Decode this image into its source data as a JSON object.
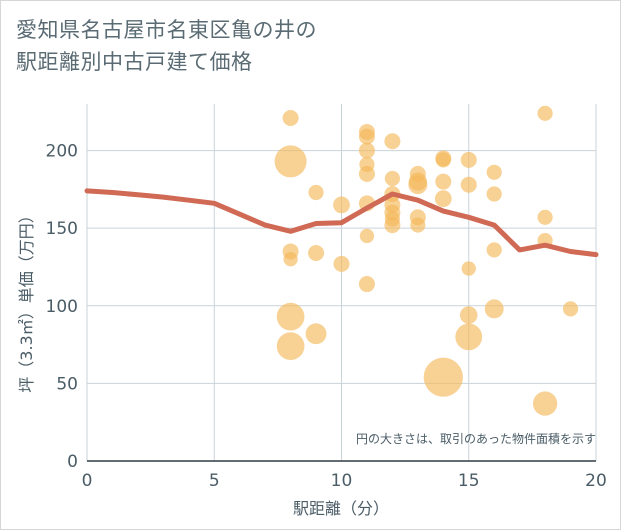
{
  "chart_data": {
    "type": "scatter",
    "title_line1": "愛知県名古屋市名東区亀の井の",
    "title_line2": "駅距離別中古戸建て価格",
    "xlabel": "駅距離（分）",
    "ylabel": "坪（3.3㎡）単価（万円）",
    "xlim": [
      0,
      20
    ],
    "ylim": [
      0,
      230
    ],
    "xticks": [
      0,
      5,
      10,
      15,
      20
    ],
    "yticks": [
      0,
      50,
      100,
      150,
      200
    ],
    "grid": true,
    "note": "円の大きさは、取引のあった物件面積を示す",
    "colors": {
      "bubble": "#f5b95a",
      "line": "#d06a55",
      "grid": "#c9d3da",
      "text": "#4a5c66"
    },
    "points": [
      {
        "x": 8,
        "y": 221,
        "size": 1
      },
      {
        "x": 8,
        "y": 193,
        "size": 4
      },
      {
        "x": 8,
        "y": 135,
        "size": 1
      },
      {
        "x": 8,
        "y": 130,
        "size": 0.8
      },
      {
        "x": 8,
        "y": 93,
        "size": 3
      },
      {
        "x": 8,
        "y": 74,
        "size": 3
      },
      {
        "x": 9,
        "y": 173,
        "size": 0.9
      },
      {
        "x": 9,
        "y": 134,
        "size": 1
      },
      {
        "x": 9,
        "y": 82,
        "size": 1.7
      },
      {
        "x": 10,
        "y": 165,
        "size": 1.1
      },
      {
        "x": 10,
        "y": 127,
        "size": 1
      },
      {
        "x": 11,
        "y": 212,
        "size": 1
      },
      {
        "x": 11,
        "y": 209,
        "size": 1
      },
      {
        "x": 11,
        "y": 200,
        "size": 1
      },
      {
        "x": 11,
        "y": 191,
        "size": 0.9
      },
      {
        "x": 11,
        "y": 185,
        "size": 1
      },
      {
        "x": 11,
        "y": 166,
        "size": 1
      },
      {
        "x": 11,
        "y": 145,
        "size": 0.8
      },
      {
        "x": 11,
        "y": 114,
        "size": 1
      },
      {
        "x": 12,
        "y": 206,
        "size": 1
      },
      {
        "x": 12,
        "y": 182,
        "size": 0.9
      },
      {
        "x": 12,
        "y": 172,
        "size": 1
      },
      {
        "x": 12,
        "y": 165,
        "size": 1
      },
      {
        "x": 12,
        "y": 160,
        "size": 1
      },
      {
        "x": 12,
        "y": 156,
        "size": 0.9
      },
      {
        "x": 12,
        "y": 152,
        "size": 1
      },
      {
        "x": 13,
        "y": 185,
        "size": 1
      },
      {
        "x": 13,
        "y": 180,
        "size": 1.3
      },
      {
        "x": 13,
        "y": 178,
        "size": 1.4
      },
      {
        "x": 13,
        "y": 157,
        "size": 1
      },
      {
        "x": 13,
        "y": 152,
        "size": 0.9
      },
      {
        "x": 14,
        "y": 195,
        "size": 1
      },
      {
        "x": 14,
        "y": 194,
        "size": 0.9
      },
      {
        "x": 14,
        "y": 180,
        "size": 1
      },
      {
        "x": 14,
        "y": 169,
        "size": 1.1
      },
      {
        "x": 14,
        "y": 54,
        "size": 6
      },
      {
        "x": 15,
        "y": 194,
        "size": 1
      },
      {
        "x": 15,
        "y": 178,
        "size": 1
      },
      {
        "x": 15,
        "y": 124,
        "size": 0.8
      },
      {
        "x": 15,
        "y": 94,
        "size": 1.2
      },
      {
        "x": 15,
        "y": 80,
        "size": 2.8
      },
      {
        "x": 16,
        "y": 186,
        "size": 0.9
      },
      {
        "x": 16,
        "y": 172,
        "size": 0.9
      },
      {
        "x": 16,
        "y": 136,
        "size": 0.9
      },
      {
        "x": 16,
        "y": 98,
        "size": 1.4
      },
      {
        "x": 18,
        "y": 224,
        "size": 0.9
      },
      {
        "x": 18,
        "y": 157,
        "size": 0.9
      },
      {
        "x": 18,
        "y": 142,
        "size": 0.9
      },
      {
        "x": 18,
        "y": 37,
        "size": 2.3
      },
      {
        "x": 19,
        "y": 98,
        "size": 0.9
      }
    ],
    "trend": [
      {
        "x": 0,
        "y": 174
      },
      {
        "x": 1,
        "y": 173
      },
      {
        "x": 2,
        "y": 171.5
      },
      {
        "x": 3,
        "y": 170
      },
      {
        "x": 4,
        "y": 168
      },
      {
        "x": 5,
        "y": 166
      },
      {
        "x": 6,
        "y": 159
      },
      {
        "x": 7,
        "y": 152
      },
      {
        "x": 8,
        "y": 148
      },
      {
        "x": 9,
        "y": 153
      },
      {
        "x": 10,
        "y": 153.5
      },
      {
        "x": 11,
        "y": 163
      },
      {
        "x": 12,
        "y": 172
      },
      {
        "x": 13,
        "y": 168
      },
      {
        "x": 14,
        "y": 161
      },
      {
        "x": 15,
        "y": 157
      },
      {
        "x": 16,
        "y": 152
      },
      {
        "x": 17,
        "y": 136
      },
      {
        "x": 18,
        "y": 139
      },
      {
        "x": 19,
        "y": 135
      },
      {
        "x": 20,
        "y": 133
      }
    ]
  }
}
